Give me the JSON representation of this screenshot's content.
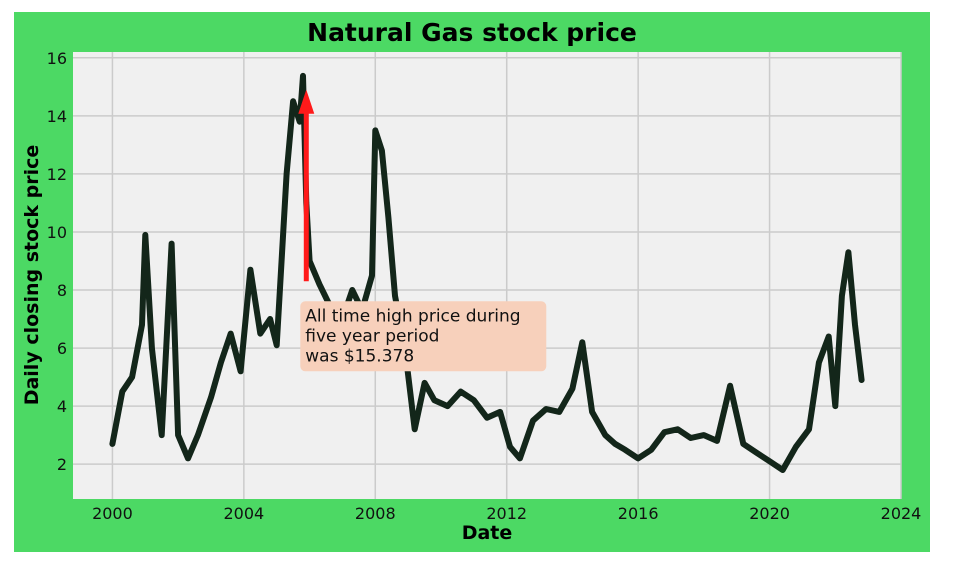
{
  "chart_data": {
    "type": "line",
    "title": "Natural Gas stock price",
    "xlabel": "Date",
    "ylabel": "Daily closing stock price",
    "xlim": [
      1998.8,
      2024.0
    ],
    "ylim": [
      0.8,
      16.2
    ],
    "x_ticks": [
      2000,
      2004,
      2008,
      2012,
      2016,
      2020,
      2024
    ],
    "x_tick_labels": [
      "2000",
      "2004",
      "2008",
      "2012",
      "2016",
      "2020",
      "2024"
    ],
    "y_ticks": [
      2,
      4,
      6,
      8,
      10,
      12,
      14,
      16
    ],
    "y_tick_labels": [
      "2",
      "4",
      "6",
      "8",
      "10",
      "12",
      "14",
      "16"
    ],
    "grid": true,
    "series": [
      {
        "color": "#13261a",
        "x": [
          2000.0,
          2000.3,
          2000.6,
          2000.9,
          2001.0,
          2001.2,
          2001.5,
          2001.8,
          2002.0,
          2002.3,
          2002.6,
          2003.0,
          2003.3,
          2003.6,
          2003.9,
          2004.2,
          2004.5,
          2004.8,
          2005.0,
          2005.3,
          2005.5,
          2005.7,
          2005.8,
          2005.9,
          2006.0,
          2006.3,
          2006.6,
          2007.0,
          2007.3,
          2007.6,
          2007.9,
          2008.0,
          2008.2,
          2008.4,
          2008.6,
          2008.9,
          2009.2,
          2009.5,
          2009.8,
          2010.2,
          2010.6,
          2011.0,
          2011.4,
          2011.8,
          2012.1,
          2012.4,
          2012.8,
          2013.2,
          2013.6,
          2014.0,
          2014.3,
          2014.6,
          2015.0,
          2015.3,
          2015.6,
          2016.0,
          2016.4,
          2016.8,
          2017.2,
          2017.6,
          2018.0,
          2018.4,
          2018.8,
          2019.2,
          2019.6,
          2020.0,
          2020.4,
          2020.8,
          2021.2,
          2021.5,
          2021.8,
          2022.0,
          2022.2,
          2022.4,
          2022.6,
          2022.8
        ],
        "values": [
          2.7,
          4.5,
          5.0,
          6.8,
          9.9,
          6.0,
          3.0,
          9.6,
          3.0,
          2.2,
          3.0,
          4.3,
          5.5,
          6.5,
          5.2,
          8.7,
          6.5,
          7.0,
          6.1,
          12.0,
          14.5,
          13.8,
          15.378,
          11.0,
          9.0,
          8.2,
          7.5,
          7.0,
          8.0,
          7.3,
          8.5,
          13.5,
          12.8,
          10.5,
          7.8,
          6.0,
          3.2,
          4.8,
          4.2,
          4.0,
          4.5,
          4.2,
          3.6,
          3.8,
          2.6,
          2.2,
          3.5,
          3.9,
          3.8,
          4.6,
          6.2,
          3.8,
          3.0,
          2.7,
          2.5,
          2.2,
          2.5,
          3.1,
          3.2,
          2.9,
          3.0,
          2.8,
          4.7,
          2.7,
          2.4,
          2.1,
          1.8,
          2.6,
          3.2,
          5.5,
          6.4,
          4.0,
          7.8,
          9.3,
          6.8,
          4.9
        ]
      }
    ],
    "annotation": {
      "text_lines": [
        "All time high price during",
        "five year period",
        "was $15.378"
      ],
      "arrow_from": [
        2005.9,
        8.3
      ],
      "arrow_to": [
        2005.9,
        14.9
      ],
      "arrow_color": "#ff1a1a",
      "box_color": "#f7d0bb"
    }
  },
  "colors": {
    "figure_bg": "#4cd964",
    "axes_bg": "#f0f0f0",
    "grid": "#cbcbcb",
    "line": "#13261a"
  }
}
